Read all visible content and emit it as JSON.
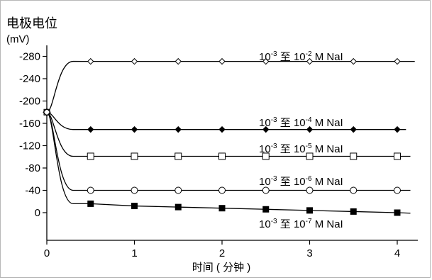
{
  "chart_data": {
    "type": "line",
    "title": "电极电位",
    "ylabel_unit": "(mV)",
    "xlabel": "时间 ( 分钟 )",
    "xlim": [
      0,
      4.2
    ],
    "ylim": [
      -300,
      40
    ],
    "y_inverted": true,
    "x_ticks": [
      0,
      1,
      2,
      3,
      4
    ],
    "x_tick_labels": [
      "0",
      "1",
      "2",
      "3",
      "4"
    ],
    "y_ticks": [
      -280,
      -240,
      -200,
      -160,
      -120,
      -80,
      -40,
      0
    ],
    "y_tick_labels": [
      "-280",
      "-240",
      "-200",
      "-160",
      "-120",
      "-80",
      "-40",
      "0"
    ],
    "start": {
      "x": 0,
      "y": -180
    },
    "grid": false,
    "legend": "inline labels",
    "series": [
      {
        "name": "10-3 至 10-2 M NaI",
        "label": {
          "base1": "10",
          "exp1": "-3",
          "mid": " 至 ",
          "base2": "10",
          "exp2": "-2",
          "tail": " M NaI"
        },
        "marker": "open-diamond",
        "x": [
          0.5,
          1,
          1.5,
          2,
          2.5,
          3,
          3.5,
          4
        ],
        "values": [
          -271,
          -271,
          -271,
          -271,
          -271,
          -271,
          -271,
          -271
        ],
        "end_x": 4.2,
        "end_y": -271
      },
      {
        "name": "10-3 至 10-4 M NaI",
        "label": {
          "base1": "10",
          "exp1": "-3",
          "mid": " 至 ",
          "base2": "10",
          "exp2": "-4",
          "tail": " M NaI"
        },
        "marker": "filled-diamond",
        "x": [
          0.5,
          1,
          1.5,
          2,
          2.5,
          3,
          3.5,
          4
        ],
        "values": [
          -149,
          -149,
          -149,
          -149,
          -149,
          -149,
          -149,
          -149
        ],
        "end_x": 4.1,
        "end_y": -149
      },
      {
        "name": "10-3 至 10-5 M NaI",
        "label": {
          "base1": "10",
          "exp1": "-3",
          "mid": " 至 ",
          "base2": "10",
          "exp2": "-5",
          "tail": " M NaI"
        },
        "marker": "open-square",
        "x": [
          0.5,
          1,
          1.5,
          2,
          2.5,
          3,
          3.5,
          4
        ],
        "values": [
          -101,
          -101,
          -101,
          -101,
          -101,
          -101,
          -101,
          -101
        ],
        "end_x": 4.15,
        "end_y": -101
      },
      {
        "name": "10-3 至 10-6 M NaI",
        "label": {
          "base1": "10",
          "exp1": "-3",
          "mid": " 至 ",
          "base2": "10",
          "exp2": "-6",
          "tail": " M NaI"
        },
        "marker": "open-circle",
        "x": [
          0.5,
          1,
          1.5,
          2,
          2.5,
          3,
          3.5,
          4
        ],
        "values": [
          -40,
          -40,
          -40,
          -40,
          -40,
          -40,
          -40,
          -40
        ],
        "end_x": 4.15,
        "end_y": -40
      },
      {
        "name": "10-3 至 10-7 M NaI",
        "label": {
          "base1": "10",
          "exp1": "-3",
          "mid": " 至 ",
          "base2": "10",
          "exp2": "-7",
          "tail": " M NaI"
        },
        "marker": "filled-square",
        "x": [
          0.5,
          1,
          1.5,
          2,
          2.5,
          3,
          3.5,
          4
        ],
        "values": [
          -16,
          -12,
          -10,
          -8,
          -6,
          -4,
          -2,
          0
        ],
        "end_x": 4.15,
        "end_y": 1
      }
    ]
  }
}
